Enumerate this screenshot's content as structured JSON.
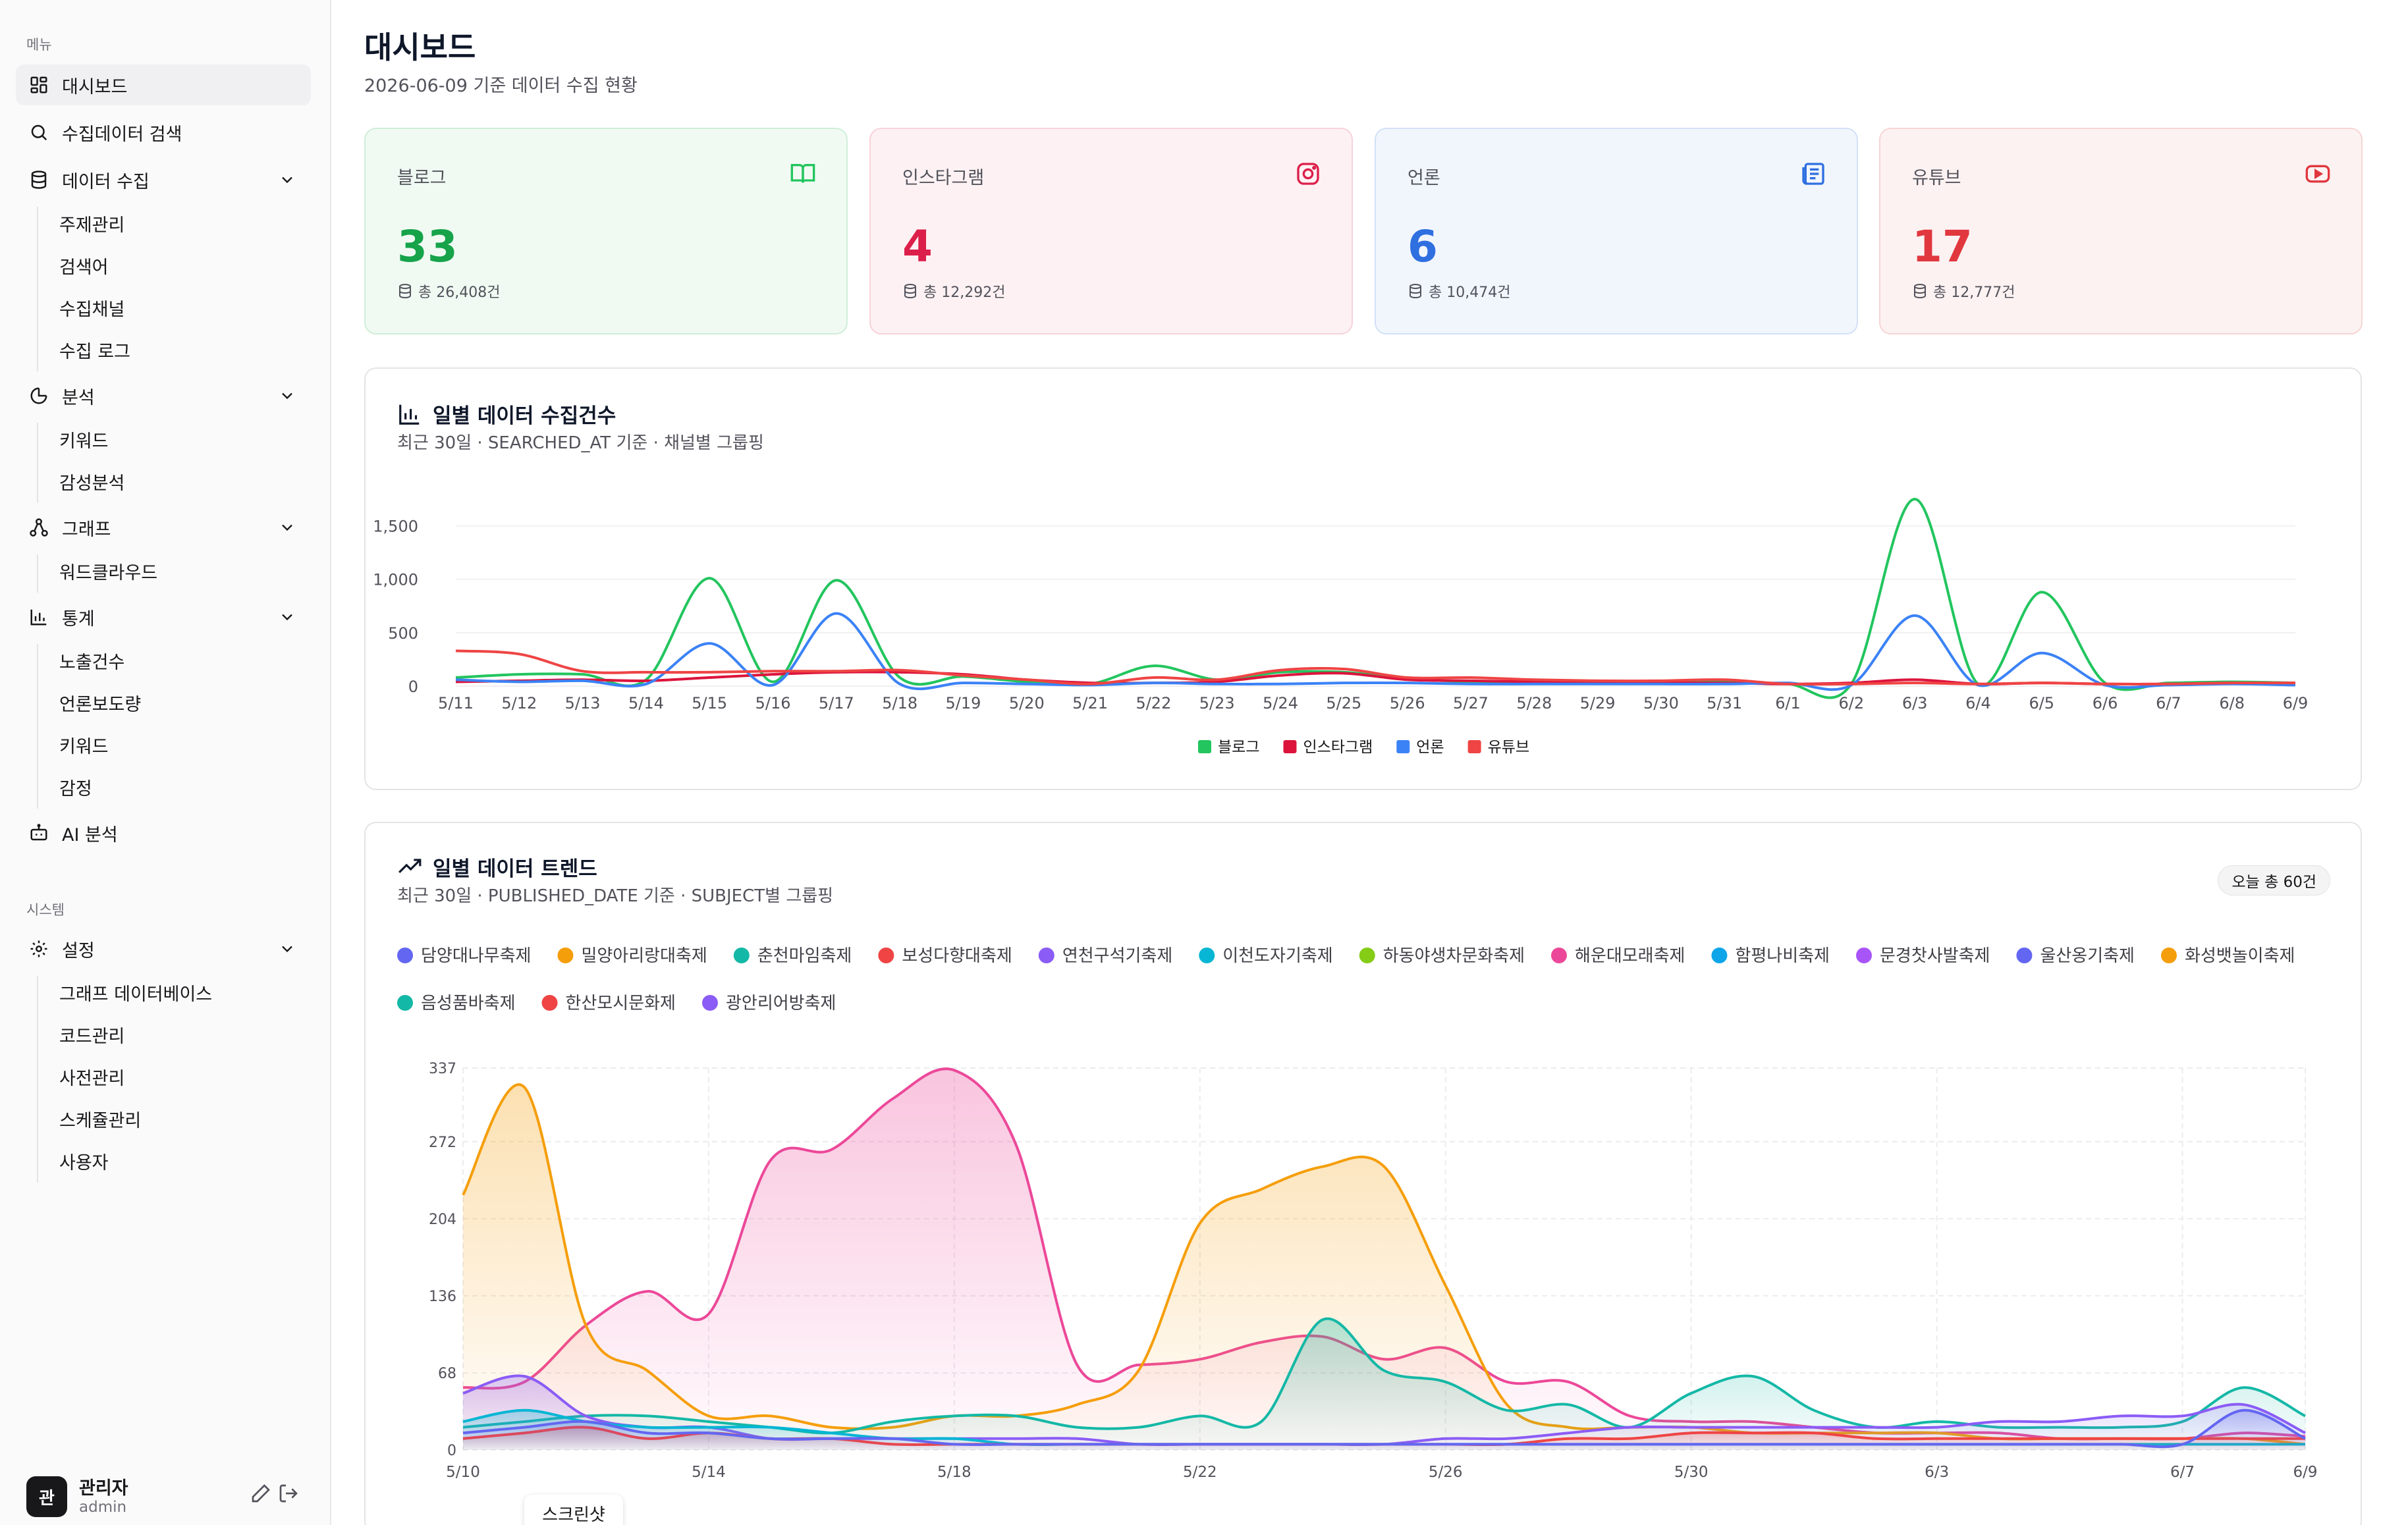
{
  "sidebar": {
    "menu_label": "메뉴",
    "system_label": "시스템",
    "items": {
      "dashboard": "대시보드",
      "search": "수집데이터 검색",
      "collect": "데이터 수집",
      "collect_sub": [
        "주제관리",
        "검색어",
        "수집채널",
        "수집 로그"
      ],
      "analysis": "분석",
      "analysis_sub": [
        "키워드",
        "감성분석"
      ],
      "graph": "그래프",
      "graph_sub": [
        "워드클라우드"
      ],
      "stats": "통계",
      "stats_sub": [
        "노출건수",
        "언론보도량",
        "키워드",
        "감정"
      ],
      "ai": "AI 분석",
      "settings": "설정",
      "settings_sub": [
        "그래프 데이터베이스",
        "코드관리",
        "사전관리",
        "스케쥴관리",
        "사용자"
      ]
    },
    "user": {
      "avatar": "관",
      "name": "관리자",
      "id": "admin"
    }
  },
  "header": {
    "title": "대시보드",
    "subtitle": "2026-06-09 기준 데이터 수집 현황"
  },
  "kpis": [
    {
      "label": "블로그",
      "value": "33",
      "total": "총 26,408건",
      "color": "#16a34a",
      "bg": "#f0faf3",
      "border": "#cfeed8",
      "icon": "book-open-icon"
    },
    {
      "label": "인스타그램",
      "value": "4",
      "total": "총 12,292건",
      "color": "#dc1f4a",
      "bg": "#fdf1f3",
      "border": "#f7d3db",
      "icon": "instagram-icon"
    },
    {
      "label": "언론",
      "value": "6",
      "total": "총 10,474건",
      "color": "#2f6fe0",
      "bg": "#f1f6fd",
      "border": "#d2e1f7",
      "icon": "newspaper-icon"
    },
    {
      "label": "유튜브",
      "value": "17",
      "total": "총 12,777건",
      "color": "#e0383e",
      "bg": "#fdf2f2",
      "border": "#f6d5d5",
      "icon": "youtube-icon"
    }
  ],
  "daily_count": {
    "title": "일별 데이터 수집건수",
    "subtitle": "최근 30일 · SEARCHED_AT 기준 · 채널별 그룹핑"
  },
  "daily_trend": {
    "title": "일별 데이터 트렌드",
    "subtitle": "최근 30일 · PUBLISHED_DATE 기준 · SUBJECT별 그룹핑",
    "badge": "오늘 총 60건"
  },
  "tooltip_tag": "스크린샷",
  "chart_data": [
    {
      "type": "line",
      "categories": [
        "5/11",
        "5/12",
        "5/13",
        "5/14",
        "5/15",
        "5/16",
        "5/17",
        "5/18",
        "5/19",
        "5/20",
        "5/21",
        "5/22",
        "5/23",
        "5/24",
        "5/25",
        "5/26",
        "5/27",
        "5/28",
        "5/29",
        "5/30",
        "5/31",
        "6/1",
        "6/2",
        "6/3",
        "6/4",
        "6/5",
        "6/6",
        "6/7",
        "6/8",
        "6/9"
      ],
      "yticks": [
        "0",
        "500",
        "1,000",
        "1,500"
      ],
      "ylim": [
        0,
        1750
      ],
      "legend_position": "bottom",
      "series": [
        {
          "name": "블로그",
          "color": "#22c55e",
          "values": [
            80,
            110,
            110,
            60,
            1010,
            40,
            990,
            80,
            90,
            40,
            20,
            190,
            60,
            130,
            130,
            70,
            40,
            30,
            30,
            30,
            40,
            20,
            20,
            1750,
            20,
            880,
            30,
            30,
            40,
            30
          ]
        },
        {
          "name": "인스타그램",
          "color": "#dc143c",
          "values": [
            40,
            50,
            60,
            50,
            80,
            110,
            130,
            130,
            110,
            60,
            30,
            30,
            40,
            100,
            120,
            60,
            50,
            40,
            30,
            30,
            30,
            20,
            30,
            60,
            20,
            30,
            20,
            20,
            30,
            20
          ]
        },
        {
          "name": "언론",
          "color": "#3b82f6",
          "values": [
            60,
            40,
            50,
            20,
            400,
            10,
            680,
            20,
            30,
            20,
            10,
            30,
            20,
            20,
            30,
            30,
            20,
            20,
            20,
            20,
            20,
            30,
            10,
            660,
            10,
            310,
            10,
            10,
            20,
            10
          ]
        },
        {
          "name": "유튜브",
          "color": "#ef4444",
          "values": [
            330,
            300,
            140,
            130,
            130,
            140,
            140,
            150,
            100,
            60,
            20,
            80,
            60,
            150,
            160,
            80,
            80,
            60,
            50,
            50,
            60,
            20,
            20,
            30,
            20,
            30,
            20,
            20,
            30,
            30
          ]
        }
      ]
    },
    {
      "type": "area",
      "x_labels": [
        "5/10",
        "5/14",
        "5/18",
        "5/22",
        "5/26",
        "5/30",
        "6/3",
        "6/7",
        "6/9"
      ],
      "x_label_positions": [
        0,
        4,
        8,
        12,
        16,
        20,
        24,
        28,
        30
      ],
      "yticks": [
        "0",
        "68",
        "136",
        "204",
        "272",
        "337"
      ],
      "ylim": [
        0,
        337
      ],
      "legend_position": "top",
      "legend": [
        {
          "name": "담양대나무축제",
          "color": "#6366f1"
        },
        {
          "name": "밀양아리랑대축제",
          "color": "#f59e0b"
        },
        {
          "name": "춘천마임축제",
          "color": "#14b8a6"
        },
        {
          "name": "보성다향대축제",
          "color": "#ef4444"
        },
        {
          "name": "연천구석기축제",
          "color": "#8b5cf6"
        },
        {
          "name": "이천도자기축제",
          "color": "#06b6d4"
        },
        {
          "name": "하동야생차문화축제",
          "color": "#84cc16"
        },
        {
          "name": "해운대모래축제",
          "color": "#ec4899"
        },
        {
          "name": "함평나비축제",
          "color": "#0ea5e9"
        },
        {
          "name": "문경찻사발축제",
          "color": "#a855f7"
        },
        {
          "name": "울산옹기축제",
          "color": "#6366f1"
        },
        {
          "name": "화성뱃놀이축제",
          "color": "#f59e0b"
        },
        {
          "name": "음성품바축제",
          "color": "#14b8a6"
        },
        {
          "name": "한산모시문화제",
          "color": "#ef4444"
        },
        {
          "name": "광안리어방축제",
          "color": "#8b5cf6"
        }
      ],
      "series": [
        {
          "name": "해운대모래축제",
          "color": "#ec4899",
          "values": [
            55,
            60,
            110,
            140,
            120,
            255,
            265,
            310,
            335,
            270,
            75,
            75,
            80,
            95,
            100,
            80,
            90,
            60,
            60,
            30,
            25,
            25,
            20,
            15,
            15,
            15,
            10,
            10,
            10,
            15,
            12
          ]
        },
        {
          "name": "밀양아리랑대축제",
          "color": "#f59e0b",
          "values": [
            225,
            320,
            110,
            70,
            30,
            30,
            20,
            20,
            30,
            30,
            40,
            70,
            200,
            230,
            250,
            250,
            145,
            40,
            20,
            20,
            20,
            15,
            15,
            15,
            15,
            10,
            10,
            10,
            10,
            10,
            5
          ]
        },
        {
          "name": "춘천마임축제",
          "color": "#14b8a6",
          "values": [
            20,
            25,
            30,
            30,
            25,
            20,
            15,
            25,
            30,
            30,
            20,
            20,
            30,
            25,
            115,
            70,
            60,
            35,
            40,
            20,
            50,
            65,
            35,
            20,
            25,
            20,
            20,
            20,
            25,
            55,
            30
          ]
        },
        {
          "name": "연천구석기축제",
          "color": "#8b5cf6",
          "values": [
            50,
            65,
            30,
            20,
            20,
            10,
            10,
            10,
            10,
            10,
            10,
            5,
            5,
            5,
            5,
            5,
            10,
            10,
            15,
            20,
            20,
            20,
            20,
            20,
            20,
            25,
            25,
            30,
            30,
            40,
            15
          ]
        },
        {
          "name": "이천도자기축제",
          "color": "#06b6d4",
          "values": [
            25,
            35,
            25,
            20,
            20,
            20,
            15,
            10,
            10,
            5,
            5,
            5,
            5,
            5,
            5,
            5,
            5,
            5,
            5,
            5,
            5,
            5,
            5,
            5,
            5,
            5,
            5,
            5,
            5,
            5,
            5
          ]
        },
        {
          "name": "보성다향대축제",
          "color": "#ef4444",
          "values": [
            10,
            15,
            20,
            10,
            15,
            10,
            10,
            5,
            5,
            5,
            5,
            5,
            5,
            5,
            5,
            5,
            5,
            5,
            10,
            10,
            15,
            15,
            15,
            10,
            10,
            10,
            10,
            10,
            10,
            10,
            10
          ]
        },
        {
          "name": "담양대나무축제",
          "color": "#6366f1",
          "values": [
            15,
            20,
            25,
            15,
            15,
            10,
            10,
            10,
            5,
            5,
            5,
            5,
            5,
            5,
            5,
            5,
            5,
            5,
            5,
            5,
            5,
            5,
            5,
            5,
            5,
            5,
            5,
            5,
            5,
            35,
            10
          ]
        }
      ]
    }
  ]
}
